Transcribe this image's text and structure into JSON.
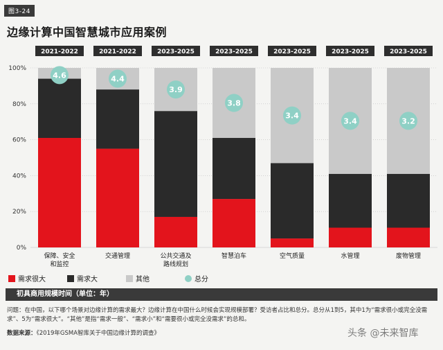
{
  "figure_label": "图3-24",
  "title": "边缘计算中国智慧城市应用案例",
  "caption": "初具商用规模时间（单位：年）",
  "note": "问题：在中国，以下哪个场景对边缘计算的需求最大？边缘计算在中国什么时候会实现规模部署？受访者占比和总分。总分从1到5，其中1为“需求很小或完全没需求”、5为“需求很大”。“其他”是指“需求一般”、“需求小”和“需要很小或完全没需求”的总和。",
  "source_label": "数据来源：",
  "source_text": "《2019年GSMA智库关于中国边缘计算的调查》",
  "watermark": "头条 @未来智库",
  "colors": {
    "high": "#e3141c",
    "large": "#2a2a2a",
    "other": "#c9c9c9",
    "score": "#8fd0c5"
  },
  "chart_data": {
    "type": "bar",
    "stacked": true,
    "categories": [
      "保障、安全和监控",
      "交通管理",
      "公共交通及路线规划",
      "智慧泊车",
      "空气质量",
      "水管理",
      "废物管理"
    ],
    "category_lines": [
      [
        "保障、安全",
        "和监控"
      ],
      [
        "交通管理"
      ],
      [
        "公共交通及",
        "路线规划"
      ],
      [
        "智慧泊车"
      ],
      [
        "空气质量"
      ],
      [
        "水管理"
      ],
      [
        "废物管理"
      ]
    ],
    "years": [
      "2021-2022",
      "2021-2022",
      "2023-2025",
      "2023-2025",
      "2023-2025",
      "2023-2025",
      "2023-2025"
    ],
    "series": [
      {
        "name": "需求很大",
        "values": [
          61,
          55,
          17,
          27,
          5,
          11,
          11
        ]
      },
      {
        "name": "需求大",
        "values": [
          33,
          33,
          59,
          34,
          42,
          30,
          30
        ]
      },
      {
        "name": "其他",
        "values": [
          6,
          12,
          24,
          39,
          53,
          59,
          59
        ]
      }
    ],
    "score_name": "总分",
    "scores": [
      "4.6",
      "4.4",
      "3.9",
      "3.8",
      "3.4",
      "3.4",
      "3.2"
    ],
    "y_ticks": [
      "0%",
      "20%",
      "40%",
      "60%",
      "80%",
      "100%"
    ],
    "ylim": [
      0,
      100
    ]
  }
}
